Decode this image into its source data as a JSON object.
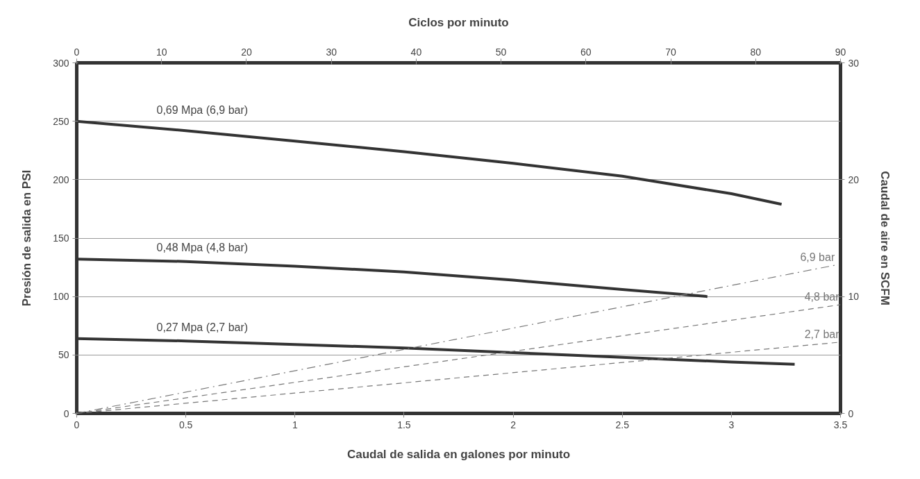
{
  "chart_data": {
    "type": "line",
    "xlabel": "Caudal de salida en galones por minuto",
    "ylabel": "Presión de salida en PSI",
    "y2label": "Caudal de aire en SCFM",
    "x2label": "Ciclos por minuto",
    "xlim": [
      0,
      3.5
    ],
    "xticks": [
      0,
      0.5,
      1,
      1.5,
      2,
      2.5,
      3,
      3.5
    ],
    "ylim": [
      0,
      300
    ],
    "yticks": [
      0,
      50,
      100,
      150,
      200,
      250,
      300
    ],
    "y2lim": [
      0,
      30
    ],
    "y2ticks": [
      0,
      10,
      20,
      30
    ],
    "x2lim": [
      0,
      90
    ],
    "x2ticks": [
      0,
      10,
      20,
      30,
      40,
      50,
      60,
      70,
      80,
      90
    ],
    "grid": "y",
    "marker": "none",
    "series": [
      {
        "name": "0,69 Mpa (6,9 bar)",
        "color": "#333333",
        "line_style": "solid",
        "x": [
          0,
          0.5,
          1,
          1.5,
          2,
          2.5,
          3,
          3.23
        ],
        "values": [
          250,
          242,
          233,
          224,
          214,
          203,
          188,
          179
        ]
      },
      {
        "name": "0,48 Mpa (4,8 bar)",
        "color": "#333333",
        "line_style": "solid",
        "x": [
          0,
          0.5,
          1,
          1.5,
          2,
          2.5,
          2.89
        ],
        "values": [
          132,
          130,
          126,
          121,
          114,
          106,
          100
        ]
      },
      {
        "name": "0,27 Mpa (2,7 bar)",
        "color": "#333333",
        "line_style": "solid",
        "x": [
          0,
          0.5,
          1,
          1.5,
          2,
          2.5,
          3,
          3.29
        ],
        "values": [
          64,
          62,
          59,
          56,
          52,
          48,
          44,
          42
        ]
      },
      {
        "name": "6,9 bar",
        "color": "#777777",
        "line_style": "dashdot",
        "axis": "y2",
        "x": [
          0,
          3.48
        ],
        "values": [
          0,
          12.7
        ]
      },
      {
        "name": "4,8 bar",
        "color": "#777777",
        "line_style": "dashed",
        "axis": "y2",
        "x": [
          0,
          3.5
        ],
        "values": [
          0,
          9.3
        ]
      },
      {
        "name": "2,7 bar",
        "color": "#777777",
        "line_style": "dashed",
        "axis": "y2",
        "x": [
          0,
          3.5
        ],
        "values": [
          0,
          6.1
        ]
      }
    ]
  }
}
